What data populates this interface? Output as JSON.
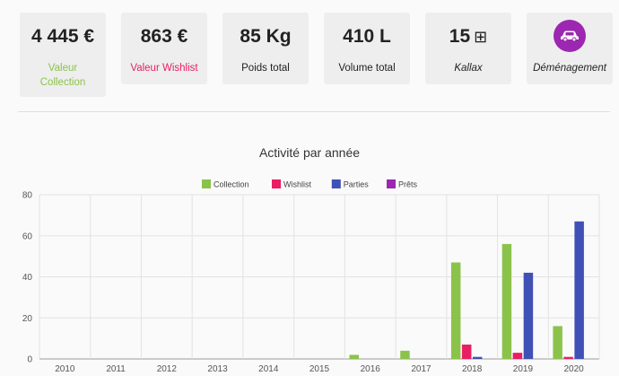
{
  "cards": [
    {
      "value": "4 445 €",
      "label": "Valeur Collection",
      "label_color": "#8bc34a",
      "italic": false
    },
    {
      "value": "863 €",
      "label": "Valeur Wishlist",
      "label_color": "#e91e63",
      "italic": false
    },
    {
      "value": "85 Kg",
      "label": "Poids total",
      "label_color": "#222222",
      "italic": false
    },
    {
      "value": "410 L",
      "label": "Volume total",
      "label_color": "#222222",
      "italic": false
    },
    {
      "value": "15",
      "value_icon": "grid-icon",
      "label": "Kallax",
      "label_color": "#222222",
      "italic": true
    },
    {
      "icon": "car-icon",
      "icon_bg": "#9c27b0",
      "label": "Déménagement",
      "label_color": "#222222",
      "italic": true
    }
  ],
  "chart_data": {
    "type": "bar",
    "title": "Activité par année",
    "categories": [
      "2010",
      "2011",
      "2012",
      "2013",
      "2014",
      "2015",
      "2016",
      "2017",
      "2018",
      "2019",
      "2020"
    ],
    "series": [
      {
        "name": "Collection",
        "color": "#8bc34a",
        "values": [
          0,
          0,
          0,
          0,
          0,
          0,
          2,
          4,
          47,
          56,
          16
        ]
      },
      {
        "name": "Wishlist",
        "color": "#e91e63",
        "values": [
          0,
          0,
          0,
          0,
          0,
          0,
          0,
          0,
          7,
          3,
          1
        ]
      },
      {
        "name": "Parties",
        "color": "#3f51b5",
        "values": [
          0,
          0,
          0,
          0,
          0,
          0,
          0,
          0,
          1,
          42,
          67
        ]
      },
      {
        "name": "Prêts",
        "color": "#9c27b0",
        "values": [
          0,
          0,
          0,
          0,
          0,
          0,
          0,
          0,
          0,
          0,
          0
        ]
      }
    ],
    "ylim": [
      0,
      80
    ],
    "yticks": [
      0,
      20,
      40,
      60,
      80
    ],
    "legend": "top",
    "grid": true
  }
}
